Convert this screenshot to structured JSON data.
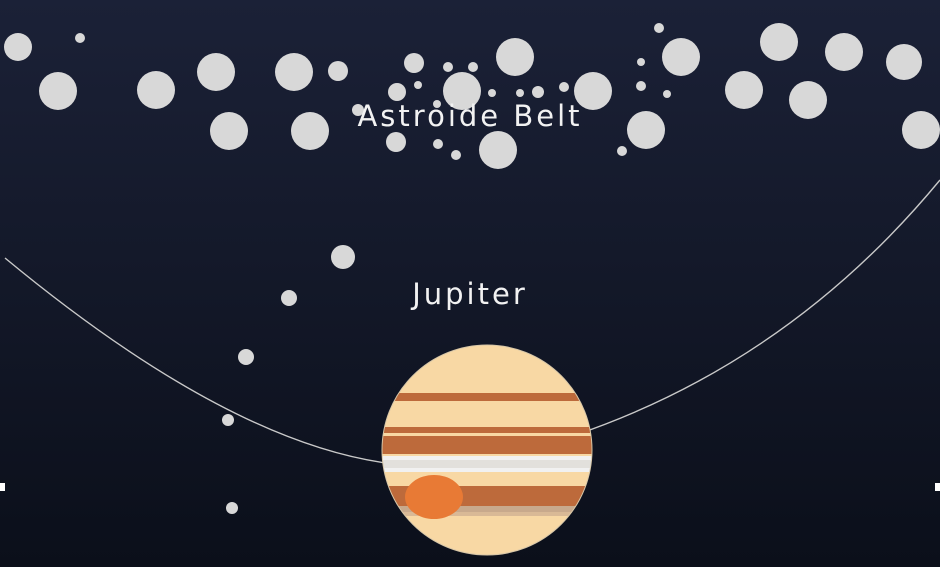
{
  "labels": {
    "asteroid_belt": "Astroide Belt",
    "jupiter": "Jupiter"
  },
  "colors": {
    "background_top": "#1b2137",
    "background_bottom": "#0b0f1a",
    "asteroid": "#d8d8d8",
    "orbit": "#c9c9c9",
    "jupiter_base": "#f8d8a4",
    "jupiter_band_dark": "#bd6a3b",
    "jupiter_band_light": "#f1f1f1",
    "jupiter_band_muted": "#c8a98c",
    "great_red_spot": "#e87a35"
  },
  "icons": [
    "asteroid-icon",
    "jupiter-planet-icon",
    "great-red-spot-icon"
  ]
}
